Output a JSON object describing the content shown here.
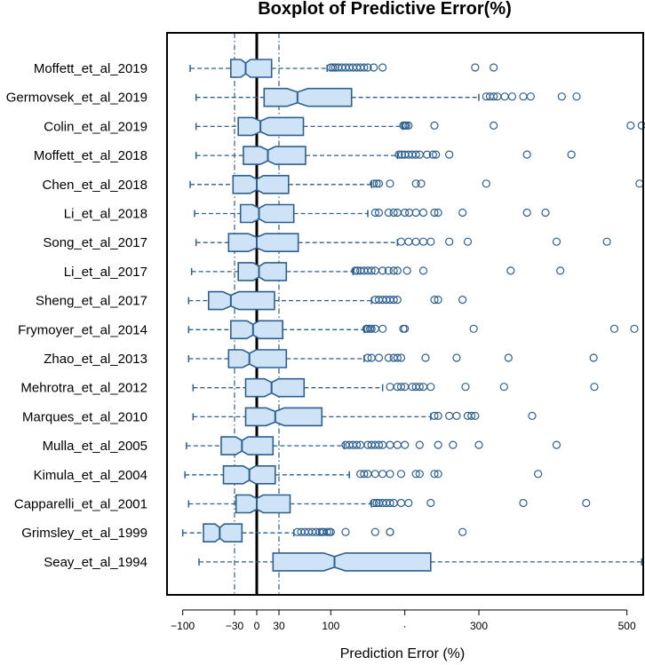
{
  "chart_data": {
    "type": "boxplot",
    "orientation": "horizontal",
    "title": "Boxplot of Predictive Error(%)",
    "xlabel": "Prediction Error (%)",
    "ylabel": "",
    "xlim": [
      -110,
      520
    ],
    "x_ticks": [
      -100,
      -30,
      0,
      30,
      100,
      200,
      300,
      500
    ],
    "x_tick_labels": [
      "−100",
      "−30",
      "0",
      "30",
      "100",
      "·",
      "300",
      "500"
    ],
    "reference_lines": [
      {
        "value": 0,
        "style": "solid"
      },
      {
        "value": -30,
        "style": "dash-dot"
      },
      {
        "value": 30,
        "style": "dash-dot"
      }
    ],
    "colors": {
      "box_fill": "#cfe3f7",
      "box_stroke": "#2d5f8f",
      "reference": "#000000",
      "dashdot": "#2d5f8f"
    },
    "studies": [
      {
        "name": "Moffett_et_al_2019",
        "whisker_low": -90,
        "q1": -35,
        "median": -15,
        "q3": 20,
        "whisker_high": 95,
        "outliers": [
          100,
          103,
          106,
          110,
          115,
          120,
          125,
          130,
          135,
          140,
          145,
          150,
          158,
          170,
          295,
          320
        ]
      },
      {
        "name": "Germovsek_et_al_2019",
        "whisker_low": -82,
        "q1": 10,
        "median": 55,
        "q3": 128,
        "whisker_high": 300,
        "outliers": [
          310,
          315,
          320,
          325,
          335,
          345,
          360,
          370,
          412,
          432
        ]
      },
      {
        "name": "Colin_et_al_2019",
        "whisker_low": -82,
        "q1": -25,
        "median": 5,
        "q3": 63,
        "whisker_high": 197,
        "outliers": [
          198,
          200,
          202,
          205,
          240,
          320,
          505,
          520
        ]
      },
      {
        "name": "Moffett_et_al_2018",
        "whisker_low": -82,
        "q1": -18,
        "median": 15,
        "q3": 66,
        "whisker_high": 190,
        "outliers": [
          192,
          196,
          200,
          205,
          210,
          215,
          220,
          230,
          238,
          242,
          260,
          365,
          425
        ]
      },
      {
        "name": "Chen_et_al_2018",
        "whisker_low": -90,
        "q1": -32,
        "median": 0,
        "q3": 43,
        "whisker_high": 155,
        "outliers": [
          158,
          162,
          165,
          180,
          215,
          222,
          310,
          517
        ]
      },
      {
        "name": "Li_et_al_2018",
        "whisker_low": -84,
        "q1": -22,
        "median": 3,
        "q3": 50,
        "whisker_high": 150,
        "outliers": [
          160,
          165,
          178,
          185,
          190,
          200,
          206,
          215,
          225,
          240,
          245,
          278,
          365,
          390
        ]
      },
      {
        "name": "Song_et_al_2017",
        "whisker_low": -82,
        "q1": -38,
        "median": 0,
        "q3": 56,
        "whisker_high": 190,
        "outliers": [
          195,
          205,
          215,
          225,
          235,
          260,
          285,
          405,
          473
        ]
      },
      {
        "name": "Li_et_al_2017",
        "whisker_low": -88,
        "q1": -25,
        "median": 3,
        "q3": 40,
        "whisker_high": 130,
        "outliers": [
          133,
          136,
          140,
          145,
          150,
          155,
          160,
          170,
          178,
          185,
          190,
          203,
          225,
          343,
          410
        ]
      },
      {
        "name": "Sheng_et_al_2017",
        "whisker_low": -92,
        "q1": -65,
        "median": -35,
        "q3": 24,
        "whisker_high": 155,
        "outliers": [
          160,
          165,
          170,
          175,
          180,
          185,
          190,
          240,
          245,
          278
        ]
      },
      {
        "name": "Frymoyer_et_al_2014",
        "whisker_low": -92,
        "q1": -35,
        "median": -5,
        "q3": 35,
        "whisker_high": 145,
        "outliers": [
          148,
          150,
          153,
          155,
          160,
          170,
          198,
          200,
          293,
          483,
          510
        ]
      },
      {
        "name": "Zhao_et_al_2013",
        "whisker_low": -92,
        "q1": -38,
        "median": -10,
        "q3": 40,
        "whisker_high": 145,
        "outliers": [
          150,
          155,
          165,
          178,
          185,
          190,
          195,
          228,
          270,
          340,
          455
        ]
      },
      {
        "name": "Mehrotra_et_al_2012",
        "whisker_low": -86,
        "q1": -15,
        "median": 20,
        "q3": 64,
        "whisker_high": 170,
        "outliers": [
          180,
          190,
          195,
          200,
          210,
          215,
          220,
          225,
          235,
          282,
          334,
          456
        ]
      },
      {
        "name": "Marques_et_al_2010",
        "whisker_low": -86,
        "q1": -15,
        "median": 25,
        "q3": 88,
        "whisker_high": 235,
        "outliers": [
          240,
          245,
          260,
          270,
          285,
          290,
          295,
          372
        ]
      },
      {
        "name": "Mulla_et_al_2005",
        "whisker_low": -95,
        "q1": -48,
        "median": -20,
        "q3": 22,
        "whisker_high": 118,
        "outliers": [
          120,
          125,
          130,
          135,
          140,
          150,
          155,
          160,
          165,
          170,
          180,
          190,
          200,
          220,
          245,
          265,
          300,
          405
        ]
      },
      {
        "name": "Kimula_et_al_2004",
        "whisker_low": -97,
        "q1": -45,
        "median": -10,
        "q3": 25,
        "whisker_high": 125,
        "outliers": [
          140,
          145,
          150,
          160,
          170,
          180,
          195,
          215,
          220,
          240,
          245,
          380
        ]
      },
      {
        "name": "Capparelli_et_al_2001",
        "whisker_low": -92,
        "q1": -28,
        "median": 0,
        "q3": 45,
        "whisker_high": 155,
        "outliers": [
          158,
          162,
          165,
          170,
          175,
          180,
          185,
          195,
          205,
          235,
          360,
          445
        ]
      },
      {
        "name": "Grimsley_et_al_1999",
        "whisker_low": -100,
        "q1": -72,
        "median": -50,
        "q3": -20,
        "whisker_high": 50,
        "outliers": [
          55,
          60,
          65,
          70,
          75,
          80,
          85,
          88,
          90,
          95,
          98,
          100,
          120,
          160,
          180,
          180,
          278
        ]
      },
      {
        "name": "Seay_et_al_1994",
        "whisker_low": -78,
        "q1": 22,
        "median": 105,
        "q3": 235,
        "whisker_high": 520,
        "outliers": []
      }
    ]
  }
}
